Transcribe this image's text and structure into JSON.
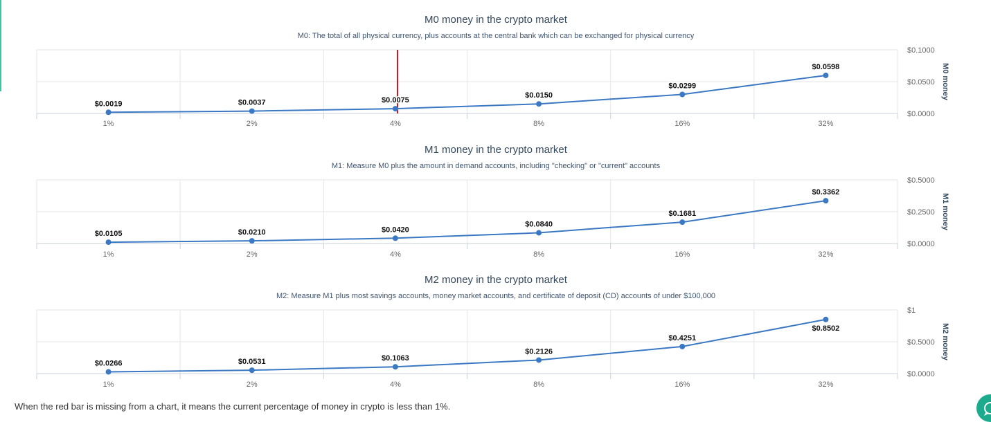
{
  "colors": {
    "line": "#3b78c3",
    "point": "#3b78c3",
    "marker": "#c0151b",
    "title": "#34495e",
    "subtitle": "#3f5470",
    "grid": "#e6e6e6",
    "accent": "#3ac5a7",
    "chat": "#1dab8e"
  },
  "footnote": "When the red bar is missing from a chart, it means the current percentage of money in crypto is less than 1%.",
  "chat_icon": "chat-bubble-icon",
  "chart_data": [
    {
      "type": "line",
      "title": "M0 money in the crypto market",
      "subtitle": "M0: The total of all physical currency, plus accounts at the central bank which can be exchanged for physical currency",
      "ylabel": "M0 money",
      "categories": [
        "1%",
        "2%",
        "4%",
        "8%",
        "16%",
        "32%"
      ],
      "values": [
        0.0019,
        0.0037,
        0.0075,
        0.015,
        0.0299,
        0.0598
      ],
      "data_labels": [
        "$0.0019",
        "$0.0037",
        "$0.0075",
        "$0.0150",
        "$0.0299",
        "$0.0598"
      ],
      "ylim": [
        0,
        0.1
      ],
      "yticks": [
        0,
        0.05,
        0.1
      ],
      "ytick_labels": [
        "$0.0000",
        "$0.0500",
        "$0.1000"
      ],
      "marker_line_category_index": 2,
      "grid": true,
      "yaxis_position": "right"
    },
    {
      "type": "line",
      "title": "M1 money in the crypto market",
      "subtitle": "M1: Measure M0 plus the amount in demand accounts, including \"checking\" or \"current\" accounts",
      "ylabel": "M1 money",
      "categories": [
        "1%",
        "2%",
        "4%",
        "8%",
        "16%",
        "32%"
      ],
      "values": [
        0.0105,
        0.021,
        0.042,
        0.084,
        0.1681,
        0.3362
      ],
      "data_labels": [
        "$0.0105",
        "$0.0210",
        "$0.0420",
        "$0.0840",
        "$0.1681",
        "$0.3362"
      ],
      "ylim": [
        0,
        0.5
      ],
      "yticks": [
        0,
        0.25,
        0.5
      ],
      "ytick_labels": [
        "$0.0000",
        "$0.2500",
        "$0.5000"
      ],
      "grid": true,
      "yaxis_position": "right"
    },
    {
      "type": "line",
      "title": "M2 money in the crypto market",
      "subtitle": "M2: Measure M1 plus most savings accounts, money market accounts, and certificate of deposit (CD) accounts of under $100,000",
      "ylabel": "M2 money",
      "categories": [
        "1%",
        "2%",
        "4%",
        "8%",
        "16%",
        "32%"
      ],
      "values": [
        0.0266,
        0.0531,
        0.1063,
        0.2126,
        0.4251,
        0.8502
      ],
      "data_labels": [
        "$0.0266",
        "$0.0531",
        "$0.1063",
        "$0.2126",
        "$0.4251",
        "$0.8502"
      ],
      "ylim": [
        0,
        1
      ],
      "yticks": [
        0,
        0.5,
        1
      ],
      "ytick_labels": [
        "$0.0000",
        "$0.5000",
        "$1"
      ],
      "grid": true,
      "yaxis_position": "right"
    }
  ]
}
